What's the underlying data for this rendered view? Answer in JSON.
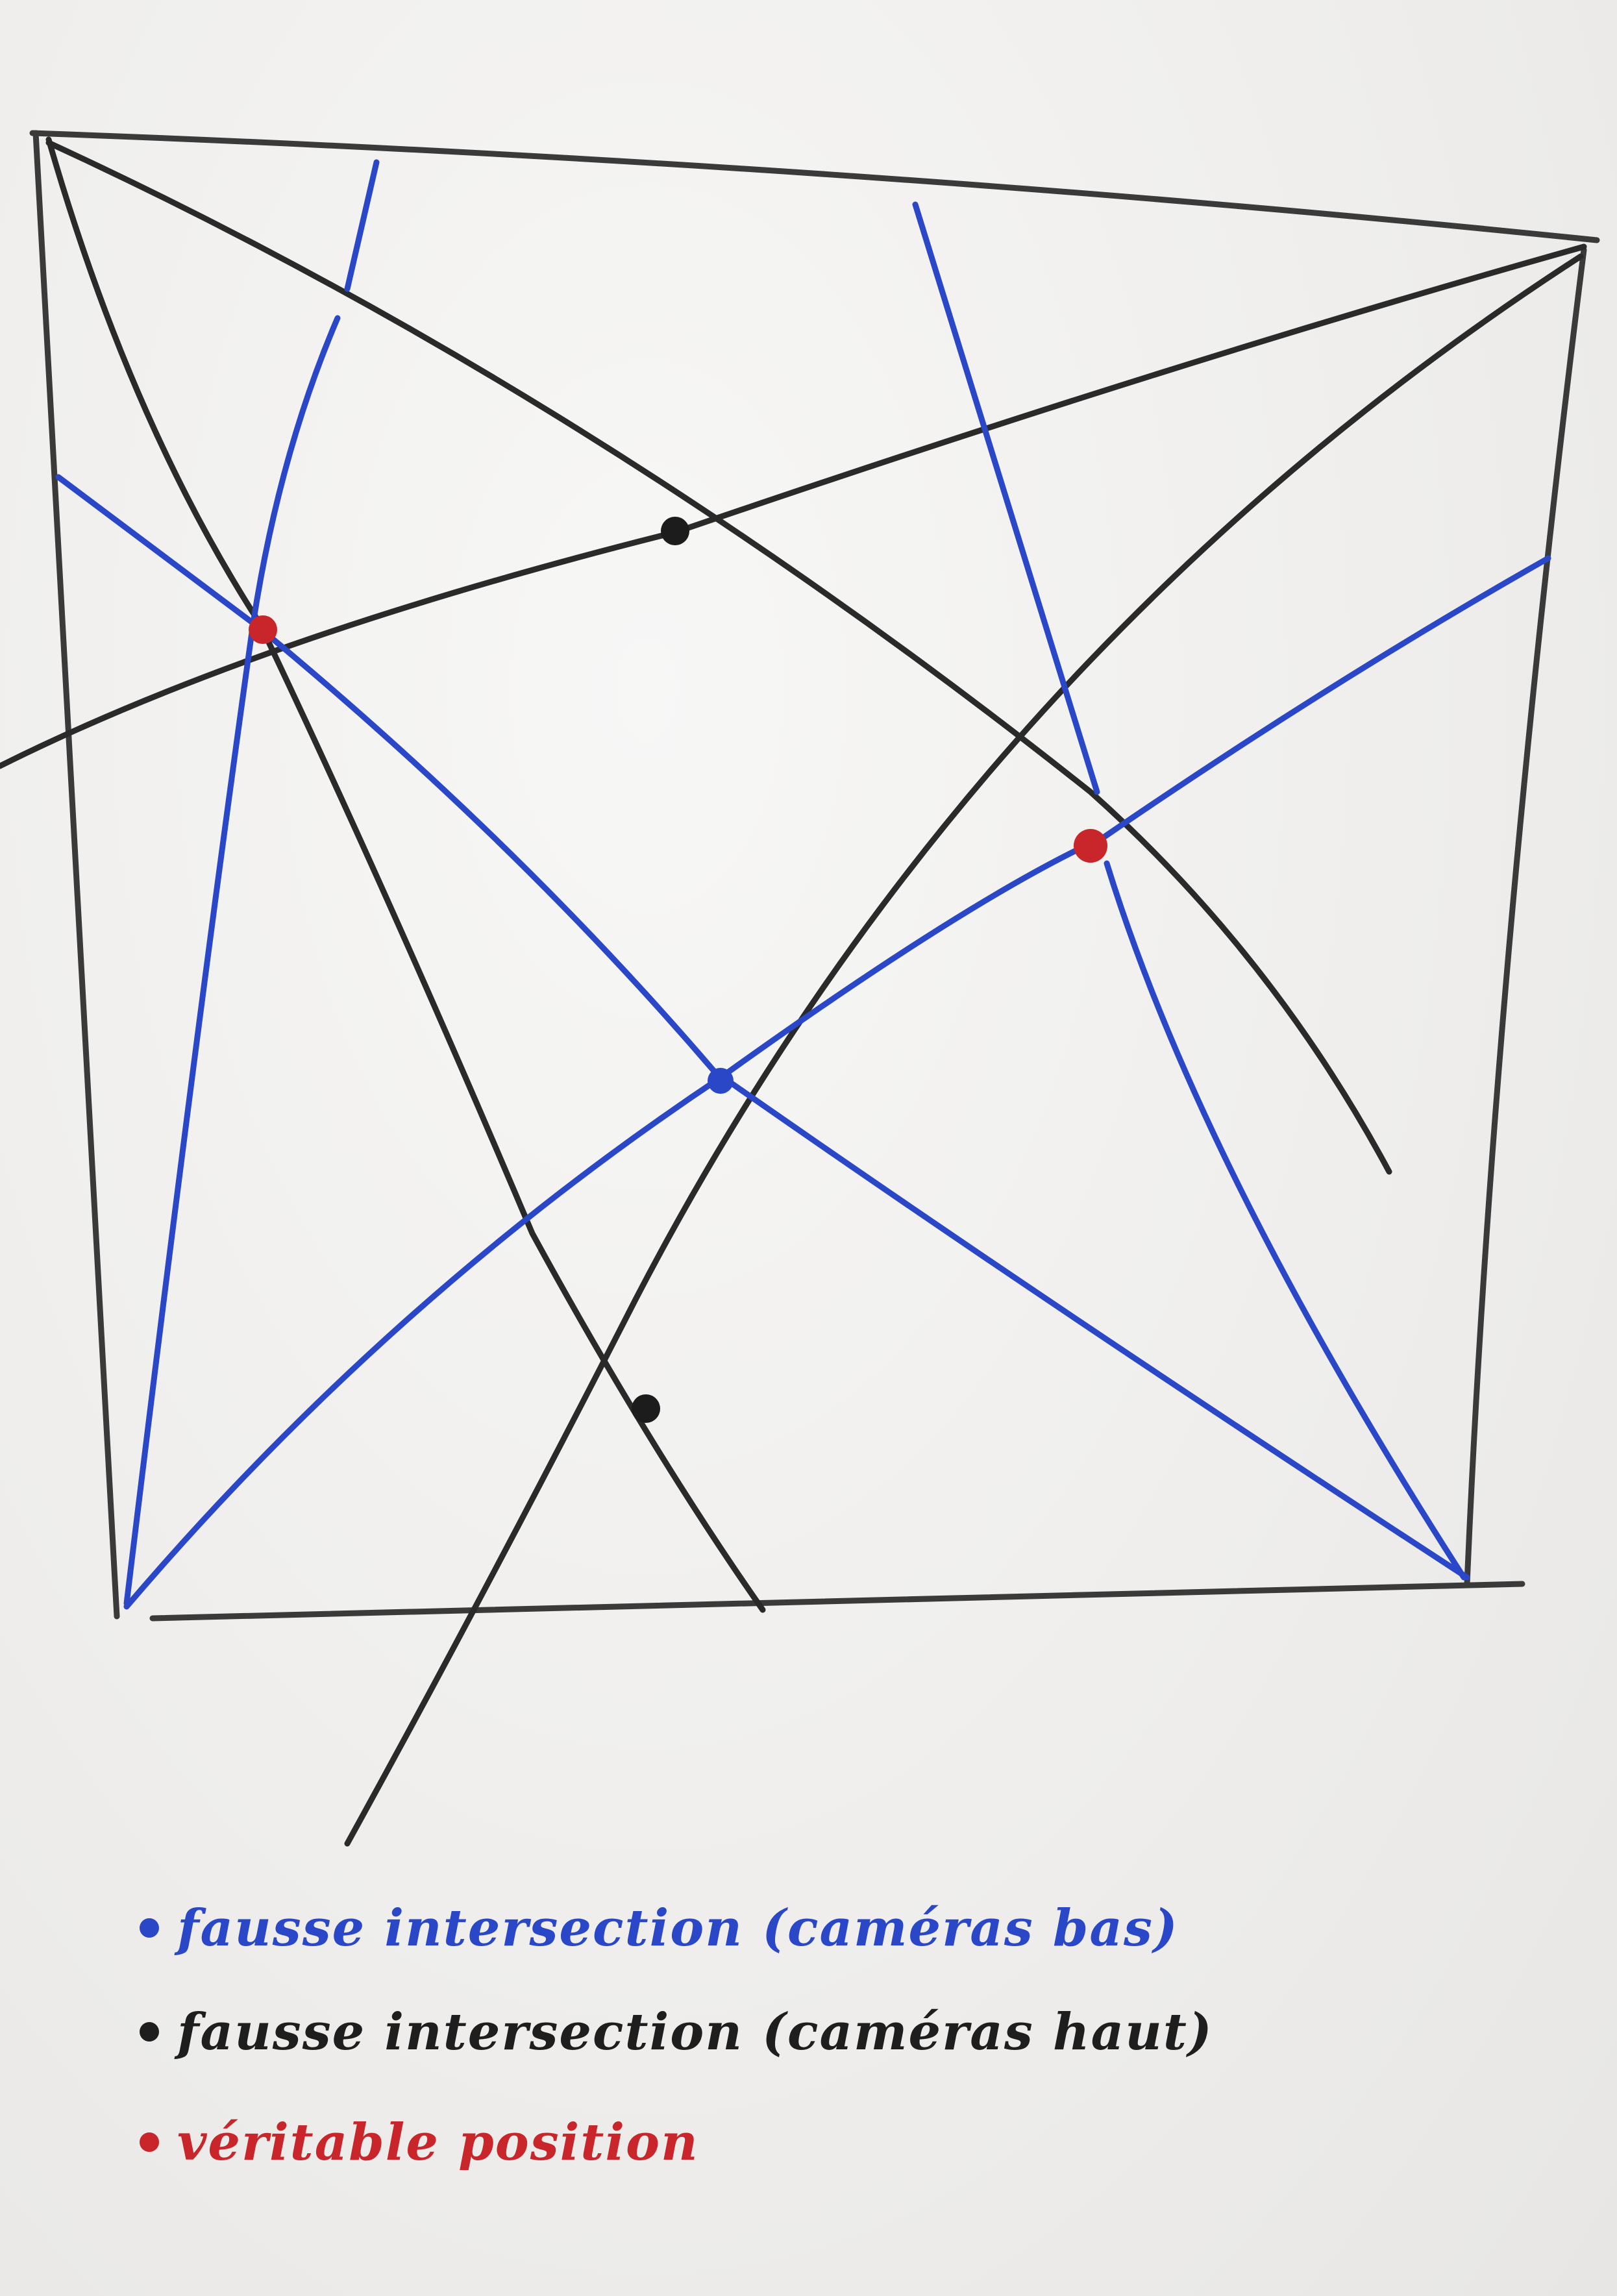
{
  "colors": {
    "board": "#f2f1ef",
    "black_marker": "#2a2a2a",
    "blue_marker": "#2a47c8",
    "red_marker": "#c8262a"
  },
  "legend": [
    {
      "label": "fausse intersection (caméras bas)",
      "color": "#2a47c8",
      "icon": "blue-dot-icon"
    },
    {
      "label": "fausse intersection (caméras haut)",
      "color": "#1e1e1e",
      "icon": "black-dot-icon"
    },
    {
      "label": "véritable position",
      "color": "#c8262a",
      "icon": "red-dot-icon"
    }
  ]
}
